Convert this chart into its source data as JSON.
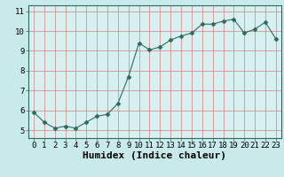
{
  "x": [
    0,
    1,
    2,
    3,
    4,
    5,
    6,
    7,
    8,
    9,
    10,
    11,
    12,
    13,
    14,
    15,
    16,
    17,
    18,
    19,
    20,
    21,
    22,
    23
  ],
  "y": [
    5.9,
    5.4,
    5.1,
    5.2,
    5.1,
    5.4,
    5.7,
    5.8,
    6.35,
    7.7,
    9.4,
    9.05,
    9.2,
    9.55,
    9.75,
    9.9,
    10.35,
    10.35,
    10.5,
    10.6,
    9.9,
    10.1,
    10.45,
    9.6
  ],
  "xlabel": "Humidex (Indice chaleur)",
  "ylabel_ticks": [
    5,
    6,
    7,
    8,
    9,
    10,
    11
  ],
  "xticks": [
    0,
    1,
    2,
    3,
    4,
    5,
    6,
    7,
    8,
    9,
    10,
    11,
    12,
    13,
    14,
    15,
    16,
    17,
    18,
    19,
    20,
    21,
    22,
    23
  ],
  "ylim": [
    4.6,
    11.3
  ],
  "xlim": [
    -0.5,
    23.5
  ],
  "line_color": "#2e6b5e",
  "marker": "D",
  "marker_size": 2.5,
  "bg_color": "#c8eaea",
  "grid_color": "#d08080",
  "axes_bg": "#d8f0f0",
  "tick_label_fontsize": 6.5,
  "xlabel_fontsize": 8,
  "line_width": 0.8
}
